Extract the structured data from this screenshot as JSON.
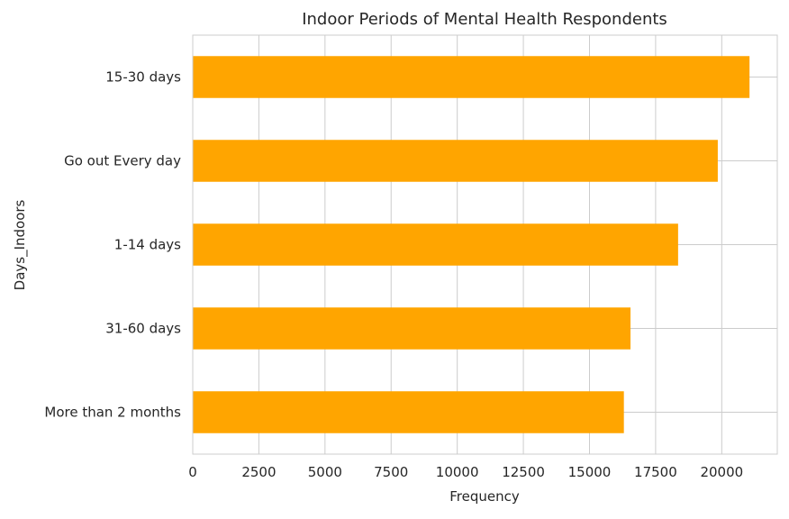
{
  "chart_data": {
    "type": "bar",
    "orientation": "horizontal",
    "title": "Indoor Periods of Mental Health Respondents",
    "xlabel": "Frequency",
    "ylabel": "Days_Indoors",
    "categories": [
      "15-30 days",
      "Go out Every day",
      "1-14 days",
      "31-60 days",
      "More than 2 months"
    ],
    "values": [
      21050,
      19850,
      18350,
      16550,
      16300
    ],
    "xlim": [
      0,
      22100
    ],
    "xticks": [
      0,
      2500,
      5000,
      7500,
      10000,
      12500,
      15000,
      17500,
      20000
    ],
    "xtick_labels": [
      "0",
      "2500",
      "5000",
      "7500",
      "10000",
      "12500",
      "15000",
      "17500",
      "20000"
    ],
    "grid": true,
    "legend": "none",
    "colors": {
      "bar": "#FFA500",
      "grid": "#cccccc",
      "axes_edge": "#cccccc",
      "text": "#262626"
    }
  }
}
